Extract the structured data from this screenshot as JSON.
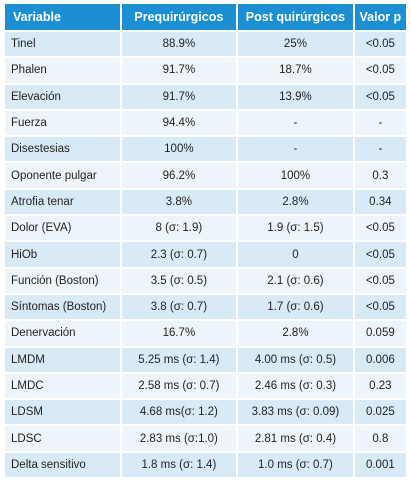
{
  "table": {
    "headers": [
      "Variable",
      "Prequirúrgicos",
      "Post quirúrgicos",
      "Valor p"
    ],
    "rows": [
      [
        "Tinel",
        "88.9%",
        "25%",
        "<0.05"
      ],
      [
        "Phalen",
        "91.7%",
        "18.7%",
        "<0.05"
      ],
      [
        "Elevación",
        "91.7%",
        "13.9%",
        "<0.05"
      ],
      [
        "Fuerza",
        "94.4%",
        "-",
        "-"
      ],
      [
        "Disestesias",
        "100%",
        "-",
        "-"
      ],
      [
        "Oponente pulgar",
        "96.2%",
        "100%",
        "0.3"
      ],
      [
        "Atrofia tenar",
        "3.8%",
        "2.8%",
        "0.34"
      ],
      [
        "Dolor (EVA)",
        "8 (σ: 1.9)",
        "1.9 (σ: 1.5)",
        "<0.05"
      ],
      [
        "HiOb",
        "2.3 (σ: 0.7)",
        "0",
        "<0.05"
      ],
      [
        "Función (Boston)",
        "3.5 (σ: 0.5)",
        "2.1 (σ: 0.6)",
        "<0.05"
      ],
      [
        "Síntomas (Boston)",
        "3.8 (σ: 0.7)",
        "1.7 (σ: 0.6)",
        "<0.05"
      ],
      [
        "Denervación",
        "16.7%",
        "2.8%",
        "0.059"
      ],
      [
        "LMDM",
        "5.25 ms (σ: 1.4)",
        "4.00 ms (σ: 0.5)",
        "0.006"
      ],
      [
        "LMDC",
        "2.58 ms (σ: 0.7)",
        "2.46 ms (σ: 0.3)",
        "0.23"
      ],
      [
        "LDSM",
        "4.68 ms(σ: 1.2)",
        "3.83 ms (σ: 0.09)",
        "0.025"
      ],
      [
        "LDSC",
        "2.83 ms (σ:1.0)",
        "2.81 ms (σ: 0.4)",
        "0.8"
      ],
      [
        "Delta sensitivo",
        "1.8 ms (σ: 1.4)",
        "1.0 ms (σ: 0.7)",
        "0.001"
      ]
    ]
  },
  "colors": {
    "header_bg": "#1b8fd2",
    "header_text": "#ffffff",
    "row_odd_bg": "#d9eaf7",
    "row_even_bg": "#edf5fb",
    "cell_text": "#1f1f1f"
  }
}
